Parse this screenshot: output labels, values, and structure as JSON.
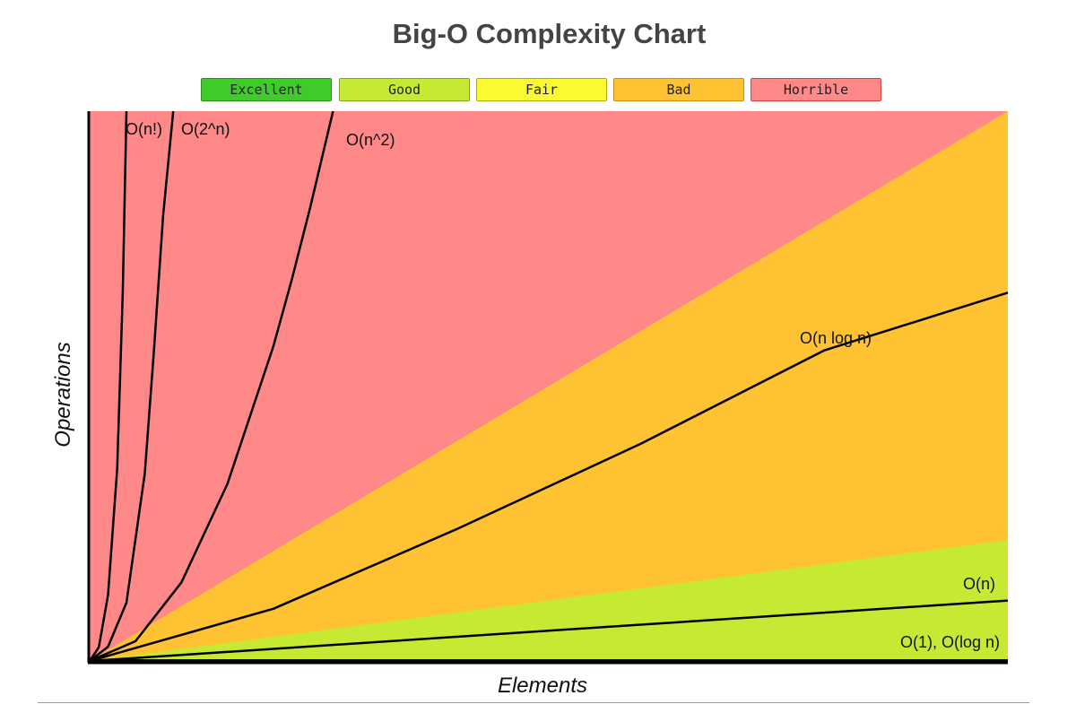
{
  "chart_data": {
    "type": "area",
    "title": "Big-O Complexity Chart",
    "xlabel": "Elements",
    "ylabel": "Operations",
    "xlim": [
      0,
      100
    ],
    "ylim": [
      0,
      100
    ],
    "legend_position": "top",
    "legend": [
      {
        "name": "Excellent",
        "color": "#3fcc2a",
        "border": "#2f8f1f"
      },
      {
        "name": "Good",
        "color": "#c6ea34",
        "border": "#86a020"
      },
      {
        "name": "Fair",
        "color": "#fbf92f",
        "border": "#b0a810"
      },
      {
        "name": "Bad",
        "color": "#ffc233",
        "border": "#c88a10"
      },
      {
        "name": "Horrible",
        "color": "#ff8888",
        "border": "#c84444"
      }
    ],
    "regions": [
      {
        "name": "Horrible",
        "color": "#ff8888",
        "upper_y_at_max_x": 100
      },
      {
        "name": "Bad",
        "color": "#ffc233",
        "upper_y_at_max_x": 100
      },
      {
        "name": "Good",
        "color": "#c6ea34",
        "upper_y_at_max_x": 22
      }
    ],
    "series": [
      {
        "name": "O(1), O(log n)",
        "x": [
          0,
          100
        ],
        "y": [
          0,
          0
        ]
      },
      {
        "name": "O(n)",
        "x": [
          0,
          20,
          40,
          60,
          80,
          100
        ],
        "y": [
          0,
          2.2,
          4.4,
          6.6,
          8.8,
          11
        ]
      },
      {
        "name": "O(n log n)",
        "x": [
          0,
          20,
          40,
          60,
          80,
          100
        ],
        "y": [
          0,
          9.5,
          24,
          39.5,
          56.5,
          67
        ]
      },
      {
        "name": "O(n^2)",
        "x": [
          0,
          5,
          10,
          15,
          20,
          22,
          24,
          26.5
        ],
        "y": [
          0,
          3.6,
          14.3,
          32.2,
          57.2,
          69.3,
          82.4,
          100
        ]
      },
      {
        "name": "O(2^n)",
        "x": [
          0,
          2,
          4,
          6,
          7,
          8,
          9.1
        ],
        "y": [
          0,
          2.6,
          10.6,
          34,
          56.5,
          81,
          100
        ]
      },
      {
        "name": "O(n!)",
        "x": [
          0,
          1,
          2,
          3,
          3.6,
          4
        ],
        "y": [
          0,
          2.5,
          12,
          35,
          67,
          100
        ]
      }
    ]
  }
}
